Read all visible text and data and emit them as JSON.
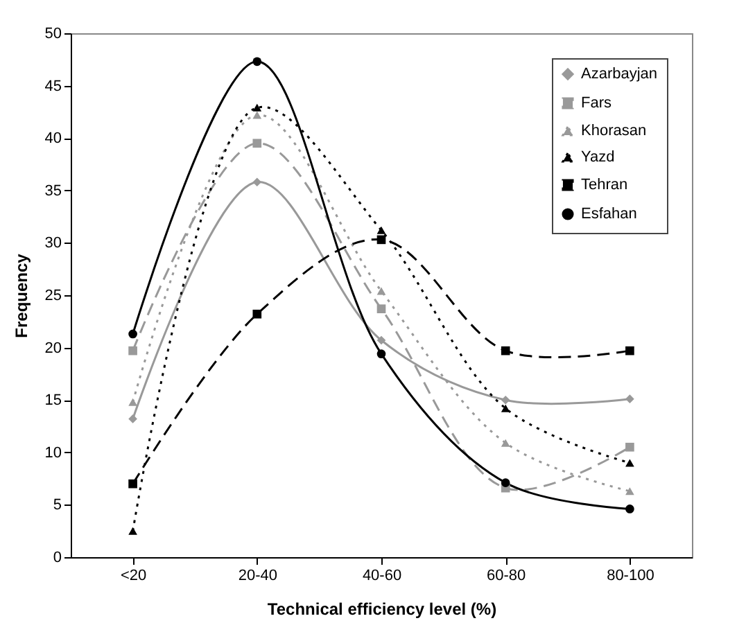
{
  "chart_data": {
    "type": "line",
    "xlabel": "Technical efficiency level (%)",
    "ylabel": "Frequency",
    "categories": [
      "<20",
      "20-40",
      "40-60",
      "60-80",
      "80-100"
    ],
    "ylim": [
      0,
      50
    ],
    "yticks": [
      0,
      5,
      10,
      15,
      20,
      25,
      30,
      35,
      40,
      45,
      50
    ],
    "grid": false,
    "legend": "top right",
    "series": [
      {
        "name": "Azarbayjan",
        "color": "#999999",
        "marker": "diamond",
        "line_style": "solid",
        "values": [
          13.2,
          35.8,
          20.7,
          15.0,
          15.1
        ]
      },
      {
        "name": "Fars",
        "color": "#999999",
        "marker": "square",
        "line_style": "dashed",
        "values": [
          19.7,
          39.5,
          23.7,
          6.6,
          10.5
        ]
      },
      {
        "name": "Khorasan",
        "color": "#999999",
        "marker": "triangle",
        "line_style": "dotted",
        "values": [
          14.8,
          42.2,
          25.4,
          10.9,
          6.3
        ]
      },
      {
        "name": "Yazd",
        "color": "#000000",
        "marker": "triangle",
        "line_style": "dotted",
        "values": [
          2.5,
          42.9,
          31.2,
          14.2,
          9.0
        ]
      },
      {
        "name": "Tehran",
        "color": "#000000",
        "marker": "square",
        "line_style": "dashed",
        "values": [
          7.0,
          23.2,
          30.3,
          19.7,
          19.7
        ]
      },
      {
        "name": "Esfahan",
        "color": "#000000",
        "marker": "circle",
        "line_style": "solid",
        "values": [
          21.3,
          47.3,
          19.4,
          7.1,
          4.6
        ]
      }
    ]
  }
}
